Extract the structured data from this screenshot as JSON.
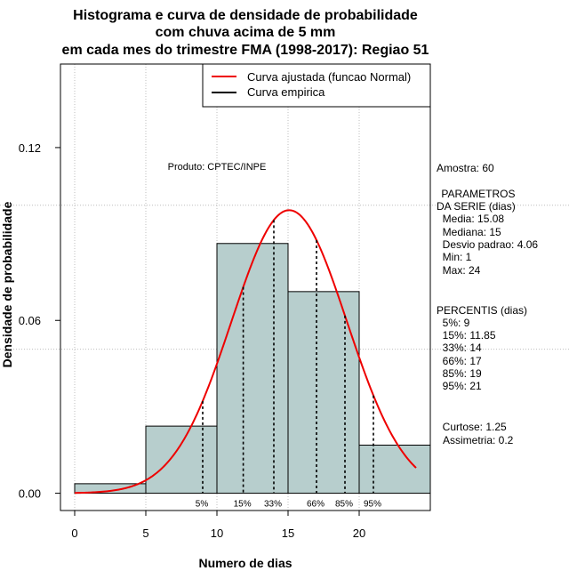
{
  "chart_data": {
    "type": "bar",
    "title": [
      "Histograma e curva de densidade de probabilidade",
      "com chuva acima de 5 mm",
      "em cada mes do trimestre FMA (1998-2017): Regiao 51"
    ],
    "xlabel": "Numero de dias",
    "ylabel": "Densidade de probabilidade",
    "xlim": [
      -1,
      25
    ],
    "ylim": [
      -0.006,
      0.149
    ],
    "x_ticks": [
      "0",
      "5",
      "10",
      "15",
      "20"
    ],
    "y_ticks": [
      "0.00",
      "0.06",
      "0.12"
    ],
    "x_tick_values": [
      0,
      5,
      10,
      15,
      20
    ],
    "y_tick_values": [
      0.0,
      0.06,
      0.12
    ],
    "grid_x": [
      0,
      5,
      10,
      15,
      20
    ],
    "grid_y": [
      0.05,
      0.1
    ],
    "bins": [
      {
        "from": 0,
        "to": 5,
        "density": 0.0033
      },
      {
        "from": 5,
        "to": 10,
        "density": 0.0233
      },
      {
        "from": 10,
        "to": 15,
        "density": 0.0867
      },
      {
        "from": 15,
        "to": 20,
        "density": 0.07
      },
      {
        "from": 20,
        "to": 25,
        "density": 0.0167
      }
    ],
    "normal_curve": {
      "mean": 15.08,
      "sd": 4.06,
      "x_from": 0,
      "x_to": 24
    },
    "percentiles": [
      {
        "label": "5%",
        "x": 9
      },
      {
        "label": "15%",
        "x": 11.85
      },
      {
        "label": "33%",
        "x": 14
      },
      {
        "label": "66%",
        "x": 17
      },
      {
        "label": "85%",
        "x": 19
      },
      {
        "label": "95%",
        "x": 21
      }
    ],
    "legend": [
      {
        "label": "Curva ajustada (funcao Normal)",
        "color": "#ee0000"
      },
      {
        "label": "Curva empirica",
        "color": "#000000"
      }
    ],
    "colors": {
      "bar_fill": "#b7cecd",
      "curve": "#ee0000",
      "grid": "#bdbdbd"
    }
  },
  "annotations": {
    "product": "Produto: CPTEC/INPE",
    "side_panel": [
      "Amostra: 60",
      " PARAMETROS",
      "DA SERIE (dias)",
      "  Media: 15.08",
      "  Mediana: 15",
      "  Desvio padrao: 4.06",
      "  Min: 1",
      "  Max: 24",
      "PERCENTIS (dias)",
      "  5%: 9",
      "  15%: 11.85",
      "  33%: 14",
      "  66%: 17",
      "  85%: 19",
      "  95%: 21",
      "  Curtose: 1.25",
      "Assimetria: 0.2"
    ]
  }
}
